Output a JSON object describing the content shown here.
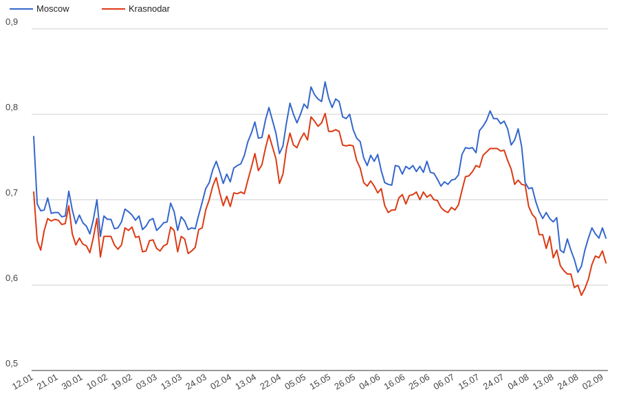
{
  "chart_data": {
    "type": "line",
    "title": "",
    "xlabel": "",
    "ylabel": "",
    "ylim": [
      0.5,
      0.9
    ],
    "yticks": [
      "0,5",
      "0,6",
      "0,7",
      "0,8",
      "0,9"
    ],
    "grid": true,
    "legend_position": "top-left",
    "x_tick_labels": [
      "12.01",
      "21.01",
      "30.01",
      "10.02",
      "19.02",
      "03.03",
      "13.03",
      "24.03",
      "02.04",
      "13.04",
      "22.04",
      "05.05",
      "15.05",
      "26.05",
      "04.06",
      "16.06",
      "25.06",
      "06.07",
      "15.07",
      "24.07",
      "04.08",
      "13.08",
      "24.08",
      "02.09"
    ],
    "series": [
      {
        "name": "Moscow",
        "color": "#3366cc",
        "values": [
          0.774,
          0.695,
          0.687,
          0.688,
          0.702,
          0.684,
          0.685,
          0.685,
          0.68,
          0.681,
          0.71,
          0.688,
          0.672,
          0.682,
          0.673,
          0.669,
          0.66,
          0.677,
          0.7,
          0.657,
          0.681,
          0.677,
          0.677,
          0.666,
          0.667,
          0.674,
          0.689,
          0.686,
          0.682,
          0.676,
          0.681,
          0.665,
          0.669,
          0.676,
          0.678,
          0.664,
          0.668,
          0.673,
          0.674,
          0.696,
          0.686,
          0.664,
          0.68,
          0.675,
          0.665,
          0.667,
          0.666,
          0.682,
          0.697,
          0.713,
          0.72,
          0.735,
          0.745,
          0.733,
          0.719,
          0.73,
          0.721,
          0.737,
          0.74,
          0.742,
          0.752,
          0.768,
          0.778,
          0.791,
          0.772,
          0.773,
          0.793,
          0.808,
          0.793,
          0.778,
          0.754,
          0.763,
          0.79,
          0.813,
          0.8,
          0.79,
          0.8,
          0.812,
          0.807,
          0.832,
          0.823,
          0.818,
          0.815,
          0.838,
          0.819,
          0.808,
          0.818,
          0.815,
          0.797,
          0.795,
          0.8,
          0.782,
          0.772,
          0.768,
          0.749,
          0.74,
          0.752,
          0.745,
          0.753,
          0.734,
          0.72,
          0.718,
          0.717,
          0.74,
          0.739,
          0.73,
          0.739,
          0.736,
          0.74,
          0.733,
          0.739,
          0.732,
          0.745,
          0.732,
          0.731,
          0.724,
          0.716,
          0.721,
          0.718,
          0.723,
          0.724,
          0.729,
          0.753,
          0.761,
          0.76,
          0.761,
          0.755,
          0.781,
          0.786,
          0.793,
          0.804,
          0.795,
          0.795,
          0.789,
          0.792,
          0.783,
          0.764,
          0.77,
          0.783,
          0.762,
          0.72,
          0.713,
          0.714,
          0.698,
          0.686,
          0.678,
          0.685,
          0.678,
          0.674,
          0.679,
          0.641,
          0.638,
          0.654,
          0.641,
          0.63,
          0.615,
          0.622,
          0.641,
          0.655,
          0.667,
          0.66,
          0.655,
          0.667,
          0.655
        ]
      },
      {
        "name": "Krasnodar",
        "color": "#dc3912",
        "values": [
          0.709,
          0.652,
          0.641,
          0.664,
          0.678,
          0.675,
          0.677,
          0.676,
          0.671,
          0.672,
          0.693,
          0.66,
          0.647,
          0.655,
          0.648,
          0.646,
          0.638,
          0.656,
          0.678,
          0.633,
          0.657,
          0.657,
          0.657,
          0.647,
          0.642,
          0.647,
          0.667,
          0.664,
          0.668,
          0.656,
          0.657,
          0.639,
          0.64,
          0.652,
          0.653,
          0.643,
          0.64,
          0.646,
          0.648,
          0.668,
          0.664,
          0.639,
          0.657,
          0.654,
          0.637,
          0.64,
          0.644,
          0.665,
          0.667,
          0.688,
          0.7,
          0.716,
          0.726,
          0.708,
          0.693,
          0.704,
          0.692,
          0.708,
          0.707,
          0.709,
          0.707,
          0.723,
          0.738,
          0.754,
          0.734,
          0.741,
          0.76,
          0.776,
          0.762,
          0.748,
          0.719,
          0.73,
          0.76,
          0.778,
          0.764,
          0.761,
          0.771,
          0.778,
          0.77,
          0.797,
          0.792,
          0.786,
          0.79,
          0.801,
          0.78,
          0.78,
          0.782,
          0.78,
          0.764,
          0.763,
          0.764,
          0.763,
          0.746,
          0.737,
          0.72,
          0.716,
          0.722,
          0.716,
          0.708,
          0.713,
          0.693,
          0.685,
          0.688,
          0.688,
          0.702,
          0.706,
          0.695,
          0.705,
          0.706,
          0.709,
          0.7,
          0.709,
          0.703,
          0.706,
          0.7,
          0.699,
          0.691,
          0.687,
          0.685,
          0.691,
          0.688,
          0.694,
          0.711,
          0.727,
          0.728,
          0.733,
          0.74,
          0.738,
          0.752,
          0.756,
          0.76,
          0.76,
          0.76,
          0.757,
          0.758,
          0.746,
          0.736,
          0.718,
          0.723,
          0.718,
          0.717,
          0.692,
          0.683,
          0.678,
          0.659,
          0.659,
          0.643,
          0.657,
          0.632,
          0.641,
          0.623,
          0.617,
          0.613,
          0.613,
          0.597,
          0.6,
          0.588,
          0.596,
          0.607,
          0.624,
          0.634,
          0.632,
          0.64,
          0.626
        ]
      }
    ]
  }
}
